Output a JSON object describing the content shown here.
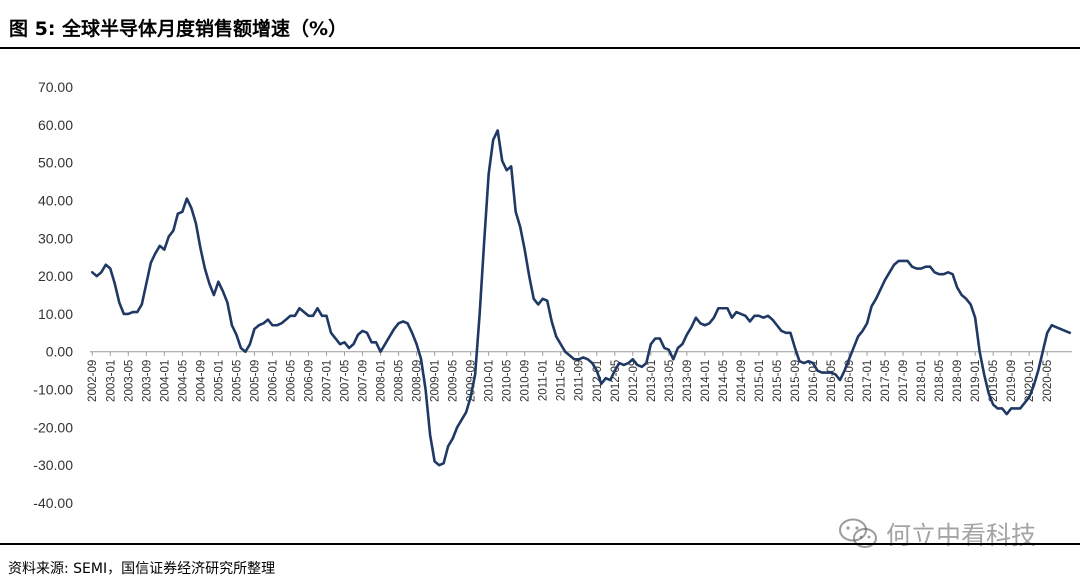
{
  "header": {
    "title": "图 5:  全球半导体月度销售额增速（%）"
  },
  "footer": {
    "source": "资料来源: SEMI，国信证券经济研究所整理"
  },
  "watermark": {
    "text": "何立中看科技",
    "icon": "wechat-icon"
  },
  "chart_data": {
    "type": "line",
    "title": "",
    "xlabel": "",
    "ylabel": "",
    "ylim": [
      -40,
      70
    ],
    "y_ticks": [
      "70.00",
      "60.00",
      "50.00",
      "40.00",
      "30.00",
      "20.00",
      "10.00",
      "0.00",
      "-10.00",
      "-20.00",
      "-30.00",
      "-40.00"
    ],
    "x_tick_labels": [
      "2002-09",
      "2003-01",
      "2003-05",
      "2003-09",
      "2004-01",
      "2004-05",
      "2004-09",
      "2005-01",
      "2005-05",
      "2005-09",
      "2006-01",
      "2006-05",
      "2006-09",
      "2007-01",
      "2007-05",
      "2007-09",
      "2008-01",
      "2008-05",
      "2008-09",
      "2009-01",
      "2009-05",
      "2009-09",
      "2010-01",
      "2010-05",
      "2010-09",
      "2011-01",
      "2011-05",
      "2011-09",
      "2012-01",
      "2012-05",
      "2012-09",
      "2013-01",
      "2013-05",
      "2013-09",
      "2014-01",
      "2014-05",
      "2014-09",
      "2015-01",
      "2015-05",
      "2015-09",
      "2016-01",
      "2016-05",
      "2016-09",
      "2017-01",
      "2017-05",
      "2017-09",
      "2018-01",
      "2018-05",
      "2018-09",
      "2019-01",
      "2019-05",
      "2019-09",
      "2020-01",
      "2020-05"
    ],
    "grid": false,
    "line_color": "#1f3864",
    "series": [
      {
        "values": [
          21,
          20,
          21,
          23,
          22,
          18,
          13,
          10,
          10,
          10.5,
          10.5,
          12.5,
          18,
          23.5,
          26,
          28,
          27,
          30.5,
          32,
          36.5,
          37,
          40.5,
          38,
          34,
          27.5,
          22,
          18,
          15,
          18.5,
          16,
          13,
          7,
          4.5,
          1,
          0,
          2,
          6,
          7,
          7.5,
          8.5,
          7,
          7,
          7.5,
          8.5,
          9.5,
          9.5,
          11.5,
          10.5,
          9.5,
          9.5,
          11.5,
          9.5,
          9.5,
          5,
          3.5,
          2,
          2.5,
          1,
          2,
          4.5,
          5.5,
          5,
          2.5,
          2.5,
          0,
          2,
          4,
          6,
          7.5,
          8,
          7.5,
          5,
          2,
          -2,
          -10,
          -22,
          -29,
          -30,
          -29.5,
          -25,
          -23,
          -20,
          -18,
          -16,
          -12,
          -6,
          10,
          29,
          47,
          56,
          58.5,
          50.5,
          48,
          49,
          37,
          33,
          27,
          20,
          14,
          12.5,
          14,
          13.5,
          8,
          4,
          2,
          0,
          -1,
          -2,
          -2,
          -1.5,
          -2,
          -3,
          -5,
          -8.5,
          -7,
          -7.5,
          -5,
          -3,
          -3.5,
          -3,
          -2,
          -3.5,
          -4,
          -3,
          2,
          3.5,
          3.5,
          1,
          0.5,
          -2,
          1,
          2,
          4.5,
          6.5,
          9,
          7.5,
          7,
          7.5,
          9,
          11.5,
          11.5,
          11.5,
          9,
          10.5,
          10,
          9.5,
          8,
          9.5,
          9.5,
          9,
          9.5,
          8.5,
          7,
          5.5,
          5,
          5,
          1,
          -2.5,
          -3,
          -2.5,
          -3,
          -5,
          -5.5,
          -5.5,
          -5.5,
          -6,
          -7.5,
          -5,
          -2,
          1,
          4,
          5.5,
          7.5,
          12,
          14,
          16.5,
          19,
          21,
          23,
          24,
          24,
          24,
          22.5,
          22,
          22,
          22.5,
          22.5,
          21,
          20.5,
          20.5,
          21,
          20.5,
          17,
          15,
          14,
          12.5,
          9,
          0,
          -6,
          -11,
          -14,
          -15,
          -15,
          -16.5,
          -15,
          -15,
          -15,
          -13.5,
          -12,
          -9,
          -5,
          0,
          5,
          7,
          6.5,
          6,
          5.5,
          5
        ]
      }
    ]
  }
}
